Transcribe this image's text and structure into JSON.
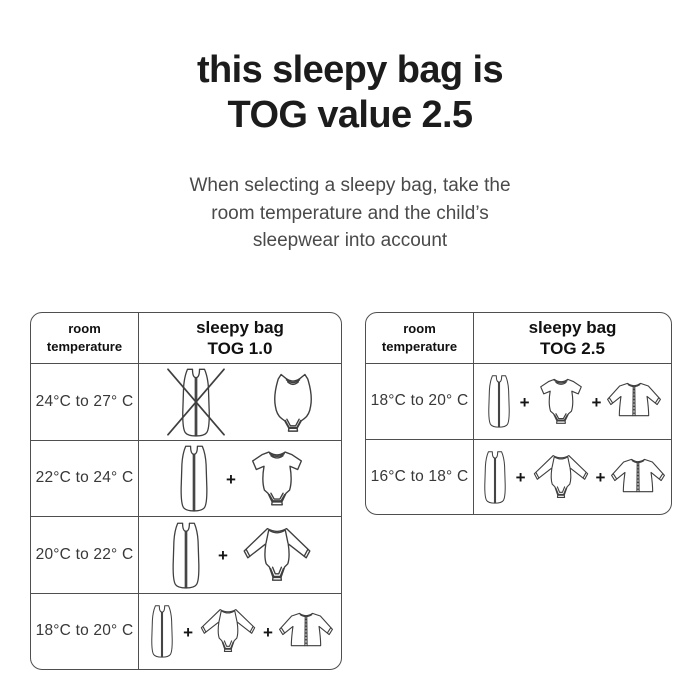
{
  "title": {
    "line1": "this sleepy bag is",
    "line2": "TOG value 2.5"
  },
  "subtitle": {
    "lines": [
      "When selecting a sleepy bag, take the",
      "room temperature and the child’s",
      "sleepwear into account"
    ]
  },
  "plus_symbol": "+",
  "tables": [
    {
      "name": "tog-1.0",
      "header": {
        "temp_col_line1": "room",
        "temp_col_line2": "temperature",
        "bag_col_line1": "sleepy bag",
        "bag_col_line2": "TOG 1.0"
      },
      "rows": [
        {
          "temperature": "24°C to 27° C",
          "items": [
            "sleepbag-crossed",
            "bodysuit-sleeveless"
          ],
          "show_plus": false
        },
        {
          "temperature": "22°C to 24° C",
          "items": [
            "sleepbag",
            "bodysuit-shortsleeve"
          ],
          "show_plus": true
        },
        {
          "temperature": "20°C to 22° C",
          "items": [
            "sleepbag",
            "bodysuit-longsleeve"
          ],
          "show_plus": true
        },
        {
          "temperature": "18°C to 20° C",
          "items": [
            "sleepbag",
            "bodysuit-longsleeve",
            "cardigan"
          ],
          "show_plus": true
        }
      ]
    },
    {
      "name": "tog-2.5",
      "header": {
        "temp_col_line1": "room",
        "temp_col_line2": "temperature",
        "bag_col_line1": "sleepy bag",
        "bag_col_line2": "TOG 2.5"
      },
      "rows": [
        {
          "temperature": "18°C to 20° C",
          "items": [
            "sleepbag",
            "bodysuit-shortsleeve",
            "cardigan"
          ],
          "show_plus": true
        },
        {
          "temperature": "16°C to 18° C",
          "items": [
            "sleepbag",
            "bodysuit-longsleeve",
            "cardigan"
          ],
          "show_plus": true
        }
      ]
    }
  ],
  "colors": {
    "background": "#ffffff",
    "title_text": "#1c1c1c",
    "subtitle_text": "#4a4a4a",
    "border": "#4f4f4f",
    "header_text": "#101010",
    "temp_text": "#383838",
    "icon_stroke": "#3f3f3f",
    "plus_text": "#151515"
  }
}
